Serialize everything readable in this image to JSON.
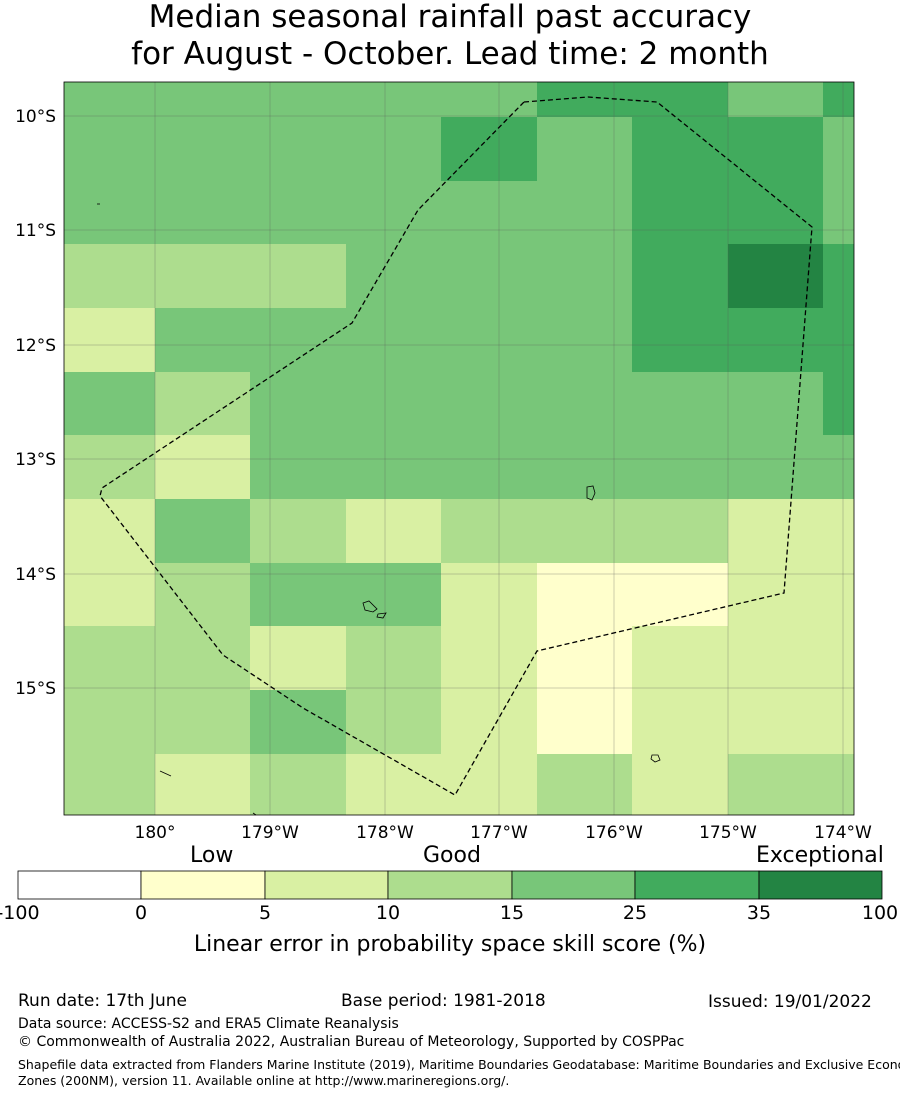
{
  "title_line1": "Median seasonal rainfall past accuracy",
  "title_line2": "for August - October. Lead time: 2 month",
  "map": {
    "lon_labels": [
      "180°",
      "179°W",
      "178°W",
      "177°W",
      "176°W",
      "175°W",
      "174°W"
    ],
    "lat_labels": [
      "10°S",
      "11°S",
      "12°S",
      "13°S",
      "14°S",
      "15°S"
    ]
  },
  "colorbar": {
    "words": [
      "Low",
      "Good",
      "Exceptional"
    ],
    "ticks": [
      "-100",
      "0",
      "5",
      "10",
      "15",
      "25",
      "35",
      "100"
    ],
    "colors": [
      "#ffffff",
      "#ffffcc",
      "#d9f0a3",
      "#addd8e",
      "#78c679",
      "#41ab5d",
      "#238443"
    ],
    "label": "Linear error in probability space skill score (%)"
  },
  "footer": {
    "run_date": "Run date: 17th June",
    "base_period": "Base period: 1981-2018",
    "issued": "Issued: 19/01/2022",
    "data_source": "Data source: ACCESS-S2 and ERA5 Climate Reanalysis",
    "copyright": "© Commonwealth of Australia 2022, Australian Bureau of Meteorology, Supported by COSPPac",
    "shapefile_1": "Shapefile data extracted from Flanders Marine Institute (2019), Maritime Boundaries Geodatabase: Maritime Boundaries and Exclusive Economic",
    "shapefile_2": "Zones (200NM), version 11. Available online at http://www.marineregions.org/."
  }
}
